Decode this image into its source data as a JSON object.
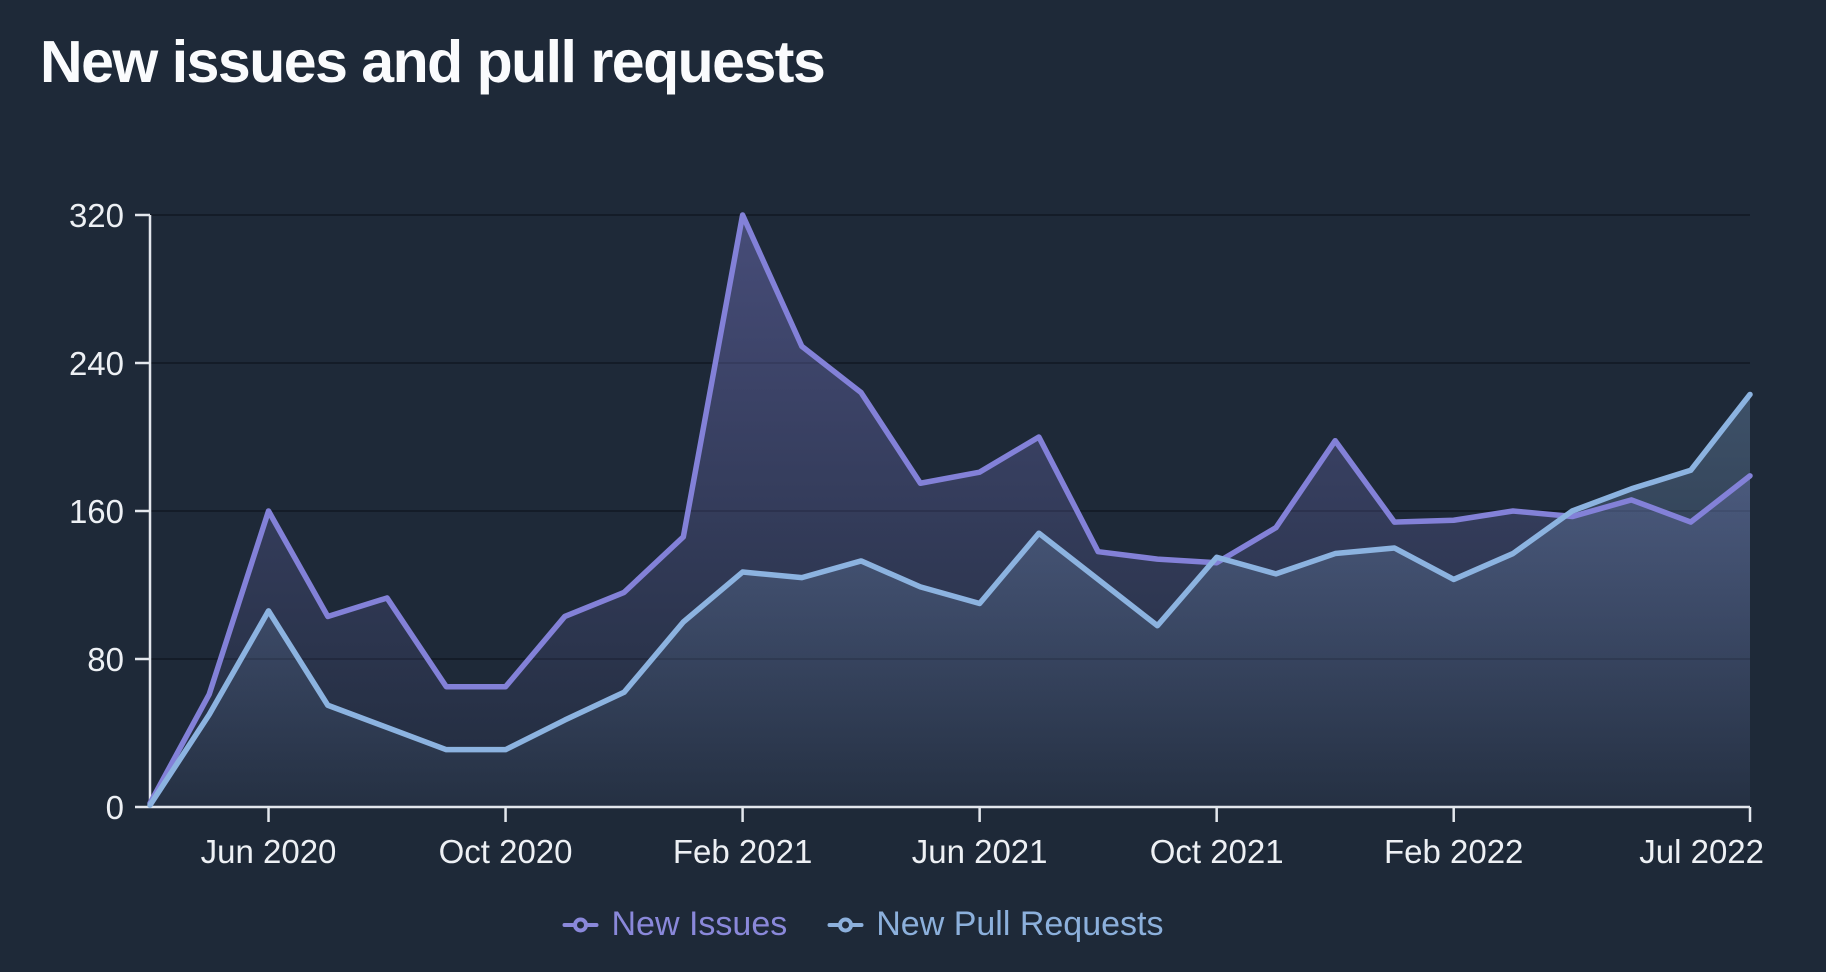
{
  "title": "New issues and pull requests",
  "legend": {
    "items": [
      {
        "label": "New Issues",
        "color": "#8a88da"
      },
      {
        "label": "New Pull Requests",
        "color": "#8cb0dc"
      }
    ]
  },
  "colors": {
    "background": "#1e2938",
    "axis": "#e3e7ed",
    "tick_label": "#edf0f4",
    "gridline": "rgba(8,12,20,0.55)",
    "title_text": "#fafbfd",
    "new_issues_line": "#8381d8",
    "new_pull_requests_line": "#8cb3e0"
  },
  "chart_data": {
    "type": "area",
    "title": "New issues and pull requests",
    "x": [
      "Apr 2020",
      "May 2020",
      "Jun 2020",
      "Jul 2020",
      "Aug 2020",
      "Sep 2020",
      "Oct 2020",
      "Nov 2020",
      "Dec 2020",
      "Jan 2021",
      "Feb 2021",
      "Mar 2021",
      "Apr 2021",
      "May 2021",
      "Jun 2021",
      "Jul 2021",
      "Aug 2021",
      "Sep 2021",
      "Oct 2021",
      "Nov 2021",
      "Dec 2021",
      "Jan 2022",
      "Feb 2022",
      "Mar 2022",
      "Apr 2022",
      "May 2022",
      "Jun 2022",
      "Jul 2022"
    ],
    "series": [
      {
        "name": "New Issues",
        "color": "#8381d8",
        "values": [
          2,
          61,
          160,
          103,
          113,
          65,
          65,
          103,
          116,
          146,
          320,
          249,
          224,
          175,
          181,
          200,
          138,
          134,
          132,
          151,
          198,
          154,
          155,
          160,
          157,
          166,
          154,
          179
        ]
      },
      {
        "name": "New Pull Requests",
        "color": "#8cb3e0",
        "values": [
          1,
          50,
          106,
          55,
          43,
          31,
          31,
          47,
          62,
          100,
          127,
          124,
          133,
          119,
          110,
          148,
          123,
          98,
          135,
          126,
          137,
          140,
          123,
          137,
          160,
          172,
          182,
          223
        ]
      }
    ],
    "xticks": [
      {
        "index": 2,
        "label": "Jun 2020"
      },
      {
        "index": 6,
        "label": "Oct 2020"
      },
      {
        "index": 10,
        "label": "Feb 2021"
      },
      {
        "index": 14,
        "label": "Jun 2021"
      },
      {
        "index": 18,
        "label": "Oct 2021"
      },
      {
        "index": 22,
        "label": "Feb 2022"
      },
      {
        "index": 27,
        "label": "Jul 2022"
      }
    ],
    "yticks": [
      0,
      80,
      160,
      240,
      320
    ],
    "ylim": [
      0,
      320
    ],
    "grid": true,
    "legend_position": "bottom"
  }
}
